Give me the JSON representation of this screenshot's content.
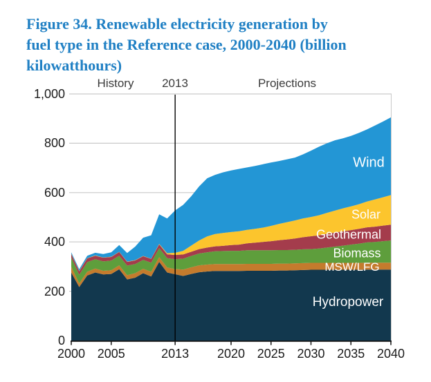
{
  "title": {
    "lines": [
      "Figure 34. Renewable electricity generation by",
      "fuel type in the Reference case, 2000-2040 (billion",
      "kilowatthours)"
    ],
    "color": "#2080C4"
  },
  "chart_data": {
    "type": "area",
    "stacked": true,
    "unit": "billion kilowatthours",
    "grid": "horizontal",
    "legend": "inline-labels",
    "xlim": [
      2000,
      2040
    ],
    "ylim": [
      0,
      1000
    ],
    "x": [
      2000,
      2001,
      2002,
      2003,
      2004,
      2005,
      2006,
      2007,
      2008,
      2009,
      2010,
      2011,
      2012,
      2013,
      2014,
      2015,
      2016,
      2017,
      2018,
      2019,
      2020,
      2021,
      2022,
      2023,
      2024,
      2025,
      2026,
      2027,
      2028,
      2029,
      2030,
      2031,
      2032,
      2033,
      2034,
      2035,
      2036,
      2037,
      2038,
      2039,
      2040
    ],
    "series": [
      {
        "id": "hydropower",
        "name": "Hydropower",
        "color": "#12384E",
        "values": [
          276,
          217,
          264,
          276,
          268,
          270,
          289,
          248,
          255,
          273,
          260,
          319,
          276,
          269,
          262,
          270,
          277,
          280,
          282,
          282,
          282,
          282,
          283,
          283,
          283,
          283,
          284,
          284,
          285,
          286,
          287,
          287,
          287,
          287,
          287,
          287,
          287,
          288,
          288,
          288,
          288
        ]
      },
      {
        "id": "msw-lfg",
        "name": "MSW/LFG",
        "color": "#C47B2D",
        "values": [
          23,
          15,
          15,
          16,
          15,
          15,
          16,
          17,
          18,
          18,
          19,
          19,
          20,
          21,
          26,
          27,
          28,
          28,
          28,
          28,
          28,
          28,
          28,
          28,
          28,
          28,
          28,
          28,
          28,
          28,
          28,
          28,
          28,
          28,
          28,
          28,
          28,
          28,
          28,
          28,
          28
        ]
      },
      {
        "id": "biomass",
        "name": "Biomass",
        "color": "#5E9E3C",
        "values": [
          38,
          35,
          39,
          38,
          38,
          39,
          39,
          39,
          37,
          36,
          37,
          37,
          38,
          40,
          44,
          46,
          48,
          50,
          52,
          53,
          54,
          54,
          55,
          55,
          55,
          55,
          55,
          55,
          55,
          56,
          56,
          58,
          62,
          66,
          70,
          74,
          78,
          82,
          84,
          87,
          90
        ]
      },
      {
        "id": "geothermal",
        "name": "Geothermal",
        "color": "#A43C4C",
        "values": [
          14,
          14,
          15,
          14,
          15,
          15,
          15,
          15,
          15,
          15,
          15,
          15,
          16,
          17,
          17,
          17,
          18,
          19,
          20,
          21,
          23,
          25,
          28,
          31,
          34,
          37,
          40,
          43,
          46,
          49,
          52,
          54,
          56,
          57,
          58,
          59,
          60,
          61,
          62,
          63,
          64
        ]
      },
      {
        "id": "solar",
        "name": "Solar",
        "color": "#FCC52D",
        "values": [
          1,
          1,
          1,
          1,
          1,
          1,
          1,
          1,
          1,
          1,
          1,
          2,
          4,
          9,
          15,
          25,
          35,
          45,
          50,
          52,
          53,
          54,
          55,
          56,
          58,
          62,
          66,
          70,
          73,
          76,
          78,
          81,
          85,
          89,
          93,
          96,
          100,
          105,
          110,
          115,
          120
        ]
      },
      {
        "id": "wind",
        "name": "Wind",
        "color": "#2396D5",
        "values": [
          6,
          7,
          10,
          11,
          14,
          18,
          27,
          35,
          55,
          74,
          95,
          120,
          141,
          172,
          186,
          200,
          219,
          236,
          240,
          246,
          250,
          253,
          253,
          255,
          257,
          257,
          255,
          255,
          255,
          260,
          269,
          278,
          282,
          285,
          284,
          286,
          289,
          292,
          300,
          307,
          315
        ]
      }
    ],
    "x_ticks": [
      {
        "year": 2000,
        "label": "2000"
      },
      {
        "year": 2005,
        "label": "2005"
      },
      {
        "year": 2013,
        "label": "2013"
      },
      {
        "year": 2020,
        "label": "2020"
      },
      {
        "year": 2025,
        "label": "2025"
      },
      {
        "year": 2030,
        "label": "2030"
      },
      {
        "year": 2035,
        "label": "2035"
      },
      {
        "year": 2040,
        "label": "2040"
      }
    ],
    "y_ticks": [
      {
        "value": 0,
        "label": "0"
      },
      {
        "value": 200,
        "label": "200"
      },
      {
        "value": 400,
        "label": "400"
      },
      {
        "value": 600,
        "label": "600"
      },
      {
        "value": 800,
        "label": "800"
      },
      {
        "value": 1000,
        "label": "1,000"
      }
    ],
    "annotations": {
      "history": "History",
      "divider_year": "2013",
      "projections": "Projections"
    },
    "colors": {
      "gridline": "#C9C9C9",
      "axis": "#111111",
      "divider": "#000000"
    }
  }
}
